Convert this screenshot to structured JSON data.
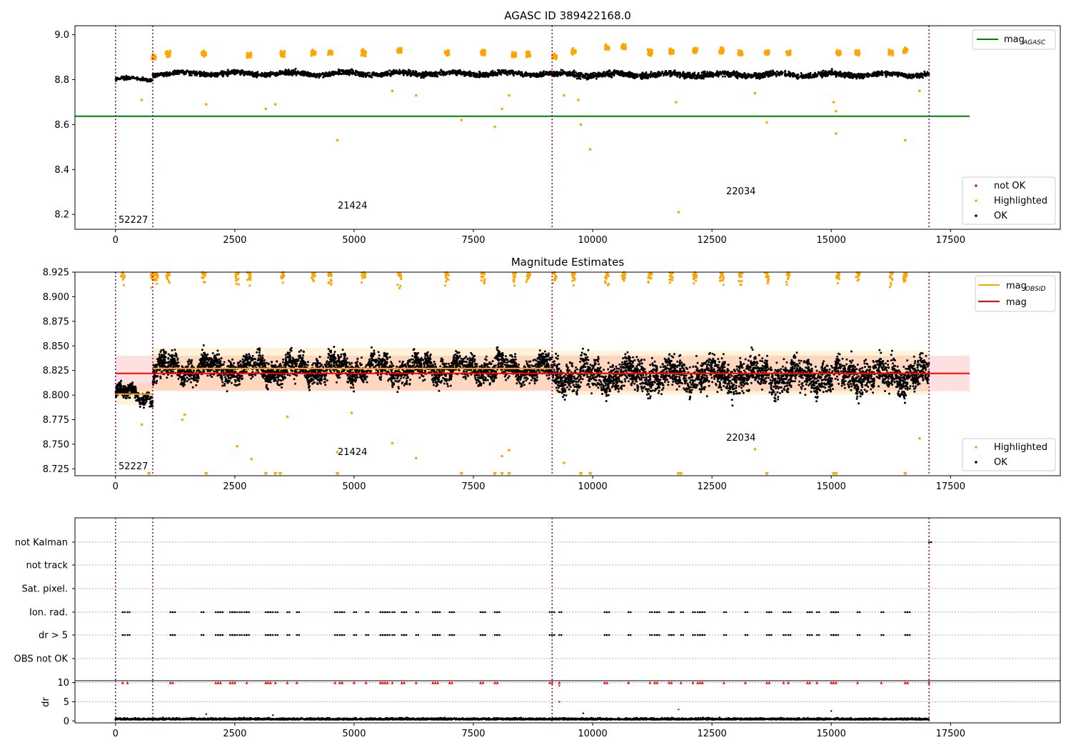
{
  "chart_data": [
    {
      "type": "scatter",
      "title": "AGASC ID 389422168.0",
      "xlim": [
        -850,
        19800
      ],
      "ylim": [
        8.134,
        9.04
      ],
      "xticks": [
        0,
        2500,
        5000,
        7500,
        10000,
        12500,
        15000,
        17500
      ],
      "yticks": [
        8.2,
        8.4,
        8.6,
        8.8,
        9.0
      ],
      "series": [
        {
          "name": "mag_AGASC",
          "kind": "hline",
          "y": 8.637,
          "x": [
            -850,
            17900
          ],
          "color": "#008000"
        },
        {
          "name": "not OK",
          "kind": "points",
          "color": "#ff0000",
          "points": []
        },
        {
          "name": "Highlighted",
          "kind": "points",
          "color": "#ffa500",
          "clusters": [
            [
              800,
              8.9
            ],
            [
              1100,
              8.915
            ],
            [
              1850,
              8.915
            ],
            [
              2800,
              8.91
            ],
            [
              3500,
              8.915
            ],
            [
              4150,
              8.92
            ],
            [
              4500,
              8.92
            ],
            [
              5200,
              8.92
            ],
            [
              5950,
              8.93
            ],
            [
              6950,
              8.92
            ],
            [
              7700,
              8.92
            ],
            [
              8350,
              8.91
            ],
            [
              8650,
              8.91
            ],
            [
              9200,
              8.9
            ],
            [
              9600,
              8.925
            ],
            [
              10300,
              8.945
            ],
            [
              10650,
              8.945
            ],
            [
              11200,
              8.92
            ],
            [
              11650,
              8.925
            ],
            [
              12150,
              8.93
            ],
            [
              12700,
              8.93
            ],
            [
              13100,
              8.92
            ],
            [
              13650,
              8.92
            ],
            [
              14100,
              8.92
            ],
            [
              15150,
              8.92
            ],
            [
              15550,
              8.92
            ],
            [
              16250,
              8.92
            ],
            [
              16550,
              8.93
            ]
          ],
          "outliers": [
            [
              550,
              8.71
            ],
            [
              1900,
              8.69
            ],
            [
              3150,
              8.67
            ],
            [
              3350,
              8.69
            ],
            [
              4650,
              8.53
            ],
            [
              5800,
              8.75
            ],
            [
              6300,
              8.73
            ],
            [
              7250,
              8.62
            ],
            [
              7950,
              8.59
            ],
            [
              8100,
              8.67
            ],
            [
              8250,
              8.73
            ],
            [
              9400,
              8.73
            ],
            [
              9700,
              8.71
            ],
            [
              9750,
              8.6
            ],
            [
              9950,
              8.49
            ],
            [
              11800,
              8.21
            ],
            [
              11750,
              8.7
            ],
            [
              13400,
              8.74
            ],
            [
              13650,
              8.61
            ],
            [
              15050,
              8.7
            ],
            [
              15100,
              8.66
            ],
            [
              15100,
              8.56
            ],
            [
              16550,
              8.53
            ],
            [
              16850,
              8.75
            ]
          ]
        },
        {
          "name": "OK",
          "kind": "points",
          "color": "#000000",
          "segments": [
            {
              "x": [
                0,
                780
              ],
              "base": 8.802,
              "spread": 0.018
            },
            {
              "x": [
                780,
                9150
              ],
              "base": 8.827,
              "spread": 0.03
            },
            {
              "x": [
                9150,
                17050
              ],
              "base": 8.822,
              "spread": 0.035
            }
          ]
        }
      ],
      "vlines": [
        0,
        780,
        9150,
        17050
      ],
      "annotations": [
        {
          "text": "52227",
          "x": 100,
          "y": 8.17
        },
        {
          "text": "21424",
          "x": 4650,
          "y": 8.23
        },
        {
          "text": "22034",
          "x": 12800,
          "y": 8.29
        }
      ],
      "legend": {
        "placement": "top-right",
        "entries": [
          "mag_AGASC"
        ],
        "second_placement": "lower-right",
        "second_entries": [
          "not OK",
          "Highlighted",
          "OK"
        ]
      }
    },
    {
      "type": "scatter",
      "title": "Magnitude Estimates",
      "xlim": [
        -850,
        19800
      ],
      "ylim": [
        8.718,
        8.925
      ],
      "xticks": [
        0,
        2500,
        5000,
        7500,
        10000,
        12500,
        15000,
        17500
      ],
      "yticks": [
        8.725,
        8.75,
        8.775,
        8.8,
        8.825,
        8.85,
        8.875,
        8.9,
        8.925
      ],
      "series": [
        {
          "name": "mag_OBSID",
          "kind": "steps",
          "color": "#ffa500",
          "steps": [
            {
              "x": [
                0,
                780
              ],
              "y": 8.801,
              "band": [
                8.79,
                8.812
              ]
            },
            {
              "x": [
                780,
                9150
              ],
              "y": 8.827,
              "band": [
                8.805,
                8.848
              ]
            },
            {
              "x": [
                9150,
                17050
              ],
              "y": 8.822,
              "band": [
                8.8,
                8.845
              ]
            }
          ]
        },
        {
          "name": "mag",
          "kind": "hline",
          "y": 8.822,
          "x": [
            0,
            17900
          ],
          "band": [
            8.804,
            8.84
          ],
          "color": "#ff0000"
        },
        {
          "name": "Highlighted",
          "kind": "points",
          "color": "#ffa500",
          "top_clipped_x": [
            150,
            780,
            850,
            1100,
            1850,
            2550,
            2800,
            3500,
            4150,
            4500,
            5200,
            5950,
            6950,
            7700,
            8350,
            8650,
            9200,
            9600,
            10300,
            10650,
            11200,
            11650,
            12150,
            12700,
            13100,
            13650,
            14100,
            15150,
            15550,
            16250,
            16550
          ],
          "bottom_clipped_x": [
            700,
            1900,
            3150,
            3350,
            3450,
            4650,
            7250,
            7950,
            8100,
            8250,
            9750,
            9950,
            11800,
            11850,
            13650,
            15050,
            15100,
            16550
          ],
          "outliers": [
            [
              550,
              8.77
            ],
            [
              1400,
              8.775
            ],
            [
              1450,
              8.78
            ],
            [
              2550,
              8.748
            ],
            [
              2850,
              8.735
            ],
            [
              3600,
              8.778
            ],
            [
              4650,
              8.742
            ],
            [
              4950,
              8.782
            ],
            [
              5800,
              8.751
            ],
            [
              6300,
              8.736
            ],
            [
              8100,
              8.738
            ],
            [
              8250,
              8.744
            ],
            [
              9400,
              8.731
            ],
            [
              13400,
              8.745
            ],
            [
              16850,
              8.756
            ]
          ]
        },
        {
          "name": "OK",
          "kind": "points",
          "color": "#000000",
          "segments": [
            {
              "x": [
                0,
                780
              ],
              "base": 8.8,
              "spread": 0.022
            },
            {
              "x": [
                780,
                9150
              ],
              "base": 8.827,
              "spread": 0.04
            },
            {
              "x": [
                9150,
                17050
              ],
              "base": 8.82,
              "spread": 0.05
            }
          ]
        }
      ],
      "vlines": [
        0,
        780,
        9150,
        17050
      ],
      "annotations": [
        {
          "text": "52227",
          "x": 100,
          "y": 8.726
        },
        {
          "text": "21424",
          "x": 4650,
          "y": 8.741
        },
        {
          "text": "22034",
          "x": 12800,
          "y": 8.757
        }
      ],
      "legend": {
        "placement": "top-right",
        "entries": [
          "mag_OBSID",
          "mag"
        ],
        "second_placement": "lower-right",
        "second_entries": [
          "Highlighted",
          "OK"
        ]
      }
    },
    {
      "type": "scatter",
      "title": "",
      "xlim": [
        -850,
        19800
      ],
      "rows": [
        "not Kalman",
        "not track",
        "Sat. pixel.",
        "Ion. rad.",
        "dr > 5",
        "OBS not OK"
      ],
      "flag_x": {
        "not Kalman": [
          17050
        ],
        "Ion. rad.": [
          150,
          250,
          1150,
          1200,
          1800,
          2100,
          2150,
          2200,
          2400,
          2450,
          2500,
          2600,
          2700,
          2750,
          3150,
          3200,
          3250,
          3350,
          3600,
          3800,
          4600,
          4700,
          4750,
          5000,
          5250,
          5550,
          5600,
          5650,
          5700,
          5800,
          6000,
          6050,
          6300,
          6650,
          6700,
          6750,
          7000,
          7050,
          7650,
          7700,
          7950,
          8000,
          9100,
          9150,
          9300,
          10250,
          10300,
          10750,
          11200,
          11300,
          11350,
          11600,
          11650,
          11850,
          12100,
          12200,
          12250,
          12300,
          12750,
          13200,
          13650,
          13700,
          14000,
          14100,
          14500,
          14550,
          14700,
          15000,
          15050,
          15100,
          15550,
          16050,
          16550,
          16600
        ],
        "dr > 5": [
          150,
          250,
          1150,
          1200,
          1800,
          2100,
          2150,
          2200,
          2400,
          2450,
          2500,
          2600,
          2700,
          2750,
          3150,
          3200,
          3250,
          3350,
          3600,
          3800,
          4600,
          4700,
          4750,
          5000,
          5250,
          5550,
          5600,
          5650,
          5700,
          5800,
          6000,
          6050,
          6300,
          6650,
          6700,
          6750,
          7000,
          7050,
          7650,
          7700,
          7950,
          8000,
          9100,
          9150,
          9300,
          10250,
          10300,
          10750,
          11200,
          11300,
          11350,
          11600,
          11650,
          11850,
          12100,
          12200,
          12250,
          12300,
          12750,
          13200,
          13650,
          13700,
          14000,
          14100,
          14500,
          14550,
          14700,
          15000,
          15050,
          15100,
          15550,
          16050,
          16550,
          16600
        ]
      },
      "vlines": [
        0,
        780,
        9150,
        17050
      ]
    },
    {
      "type": "scatter",
      "title": "",
      "ylabel": "dr",
      "xlim": [
        -850,
        19800
      ],
      "ylim": [
        -0.5,
        10.5
      ],
      "xticks": [
        0,
        2500,
        5000,
        7500,
        10000,
        12500,
        15000,
        17500
      ],
      "yticks": [
        0,
        5,
        10
      ],
      "series": [
        {
          "name": "dr",
          "kind": "points",
          "color": "#000000",
          "base": 0.5,
          "spread": 0.8,
          "x": [
            0,
            17050
          ],
          "outliers": [
            [
              1900,
              1.8
            ],
            [
              3300,
              1.5
            ],
            [
              9800,
              2.0
            ],
            [
              15000,
              2.6
            ],
            [
              9300,
              9.2
            ]
          ]
        },
        {
          "name": "dr clipped",
          "kind": "markers",
          "color": "#ff0000",
          "y": 10,
          "x": [
            150,
            250,
            1150,
            1200,
            2100,
            2150,
            2200,
            2400,
            2450,
            2500,
            2750,
            3150,
            3200,
            3250,
            3350,
            3600,
            3800,
            4600,
            4700,
            4750,
            5000,
            5250,
            5550,
            5600,
            5650,
            5700,
            5800,
            6000,
            6050,
            6300,
            6650,
            6700,
            6750,
            7000,
            7050,
            7650,
            7700,
            7950,
            8000,
            9100,
            9150,
            9300,
            10250,
            10300,
            10750,
            11200,
            11300,
            11350,
            11600,
            11650,
            11850,
            12100,
            12200,
            12250,
            12300,
            12750,
            13200,
            13650,
            13700,
            14000,
            14100,
            14500,
            14550,
            14700,
            15000,
            15050,
            15100,
            15550,
            16050,
            16550,
            16600,
            17050
          ],
          "extra": [
            [
              9300,
              5
            ],
            [
              11800,
              3
            ]
          ]
        }
      ],
      "vlines": [
        0,
        780,
        9150,
        17050
      ]
    }
  ],
  "labels": {
    "title1": "AGASC ID 389422168.0",
    "title2": "Magnitude Estimates",
    "ylabel4": "dr",
    "legend1a": {
      "base": "mag",
      "sub": "AGASC"
    },
    "legend1b": [
      "not OK",
      "Highlighted",
      "OK"
    ],
    "legend2a": [
      {
        "base": "mag",
        "sub": "OBSID"
      },
      {
        "base": "mag",
        "sub": ""
      }
    ],
    "legend2b": [
      "Highlighted",
      "OK"
    ],
    "annotations1": [
      "52227",
      "21424",
      "22034"
    ],
    "annotations2": [
      "52227",
      "21424",
      "22034"
    ]
  }
}
